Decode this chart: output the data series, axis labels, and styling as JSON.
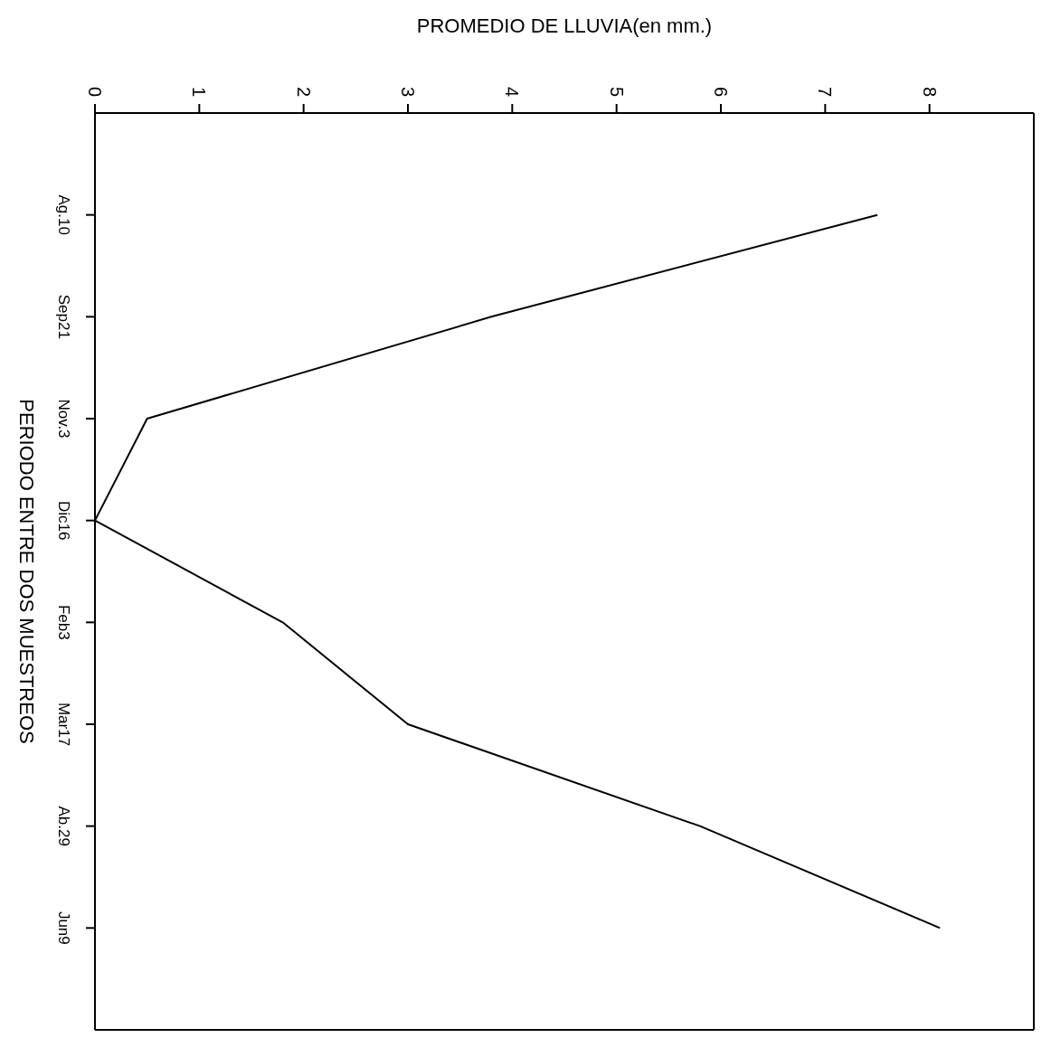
{
  "chart_data": {
    "type": "line",
    "orientation": "horizontal",
    "xlabel": "PROMEDIO DE LLUVIA(en mm.)",
    "ylabel": "PERIODO ENTRE DOS MUESTREOS",
    "categories": [
      "Ag.10",
      "Sep21",
      "Nov.3",
      "Dic16",
      "Feb3",
      "Mar17",
      "Ab.29",
      "Jun9"
    ],
    "series": [
      {
        "color": "#000000",
        "values": [
          7.5,
          3.8,
          0.5,
          0,
          1.8,
          3,
          5.8,
          8.1
        ]
      }
    ],
    "xlim": [
      0,
      9
    ],
    "xticks": [
      0,
      1,
      2,
      3,
      4,
      5,
      6,
      7,
      8
    ],
    "grid": false,
    "legend": false,
    "marker": "none",
    "line_style": "solid"
  }
}
